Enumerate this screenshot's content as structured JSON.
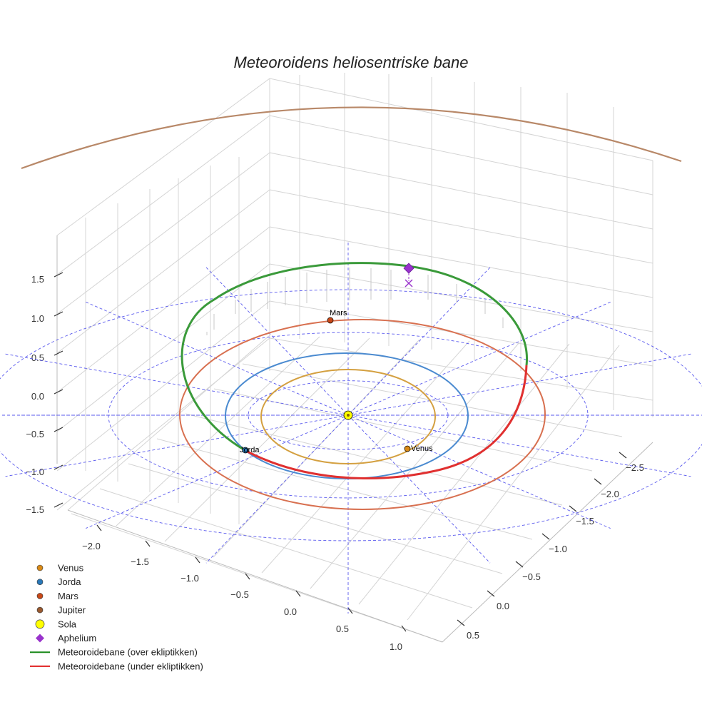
{
  "chart_data": {
    "type": "3d-line",
    "title": "Meteoroidens heliosentriske bane",
    "xlabel": "",
    "ylabel": "",
    "zlabel": "",
    "x_ticks": [
      "−2.0",
      "−1.5",
      "−1.0",
      "−0.5",
      "0.0",
      "0.5",
      "1.0"
    ],
    "y_ticks": [
      "−2.5",
      "−2.0",
      "−1.5",
      "−1.0",
      "−0.5",
      "0.0",
      "0.5"
    ],
    "z_ticks": [
      "1.5",
      "1.0",
      "0.5",
      "0.0",
      "−0.5",
      "−1.0",
      "−1.5"
    ],
    "grid": true,
    "legend_position": "bottom-left",
    "planets": [
      {
        "name": "Venus",
        "label": "Venus",
        "semi_major_axis_au": 0.72,
        "color": "#d4a040",
        "marker_color": "#d98a18"
      },
      {
        "name": "Jorda",
        "label": "Jorda",
        "semi_major_axis_au": 1.0,
        "color": "#4a8ad0",
        "marker_color": "#2a78b8"
      },
      {
        "name": "Mars",
        "label": "Mars",
        "semi_major_axis_au": 1.52,
        "color": "#d87050",
        "marker_color": "#c84818"
      },
      {
        "name": "Jupiter",
        "label": "",
        "semi_major_axis_au": 5.2,
        "color": "#b88868",
        "marker_color": "#9a5a30"
      }
    ],
    "sun": {
      "name": "Sola",
      "color": "#ffff00"
    },
    "aphelion": {
      "name": "Aphelium",
      "color": "#9933cc"
    },
    "meteoroid_orbit": {
      "series": [
        {
          "name": "Meteoroidebane (over ekliptikken)",
          "color": "#3a9a3a"
        },
        {
          "name": "Meteoroidebane (under ekliptikken)",
          "color": "#e03030"
        }
      ]
    },
    "legend": [
      {
        "label": "Venus",
        "kind": "dot",
        "color": "#d98a18"
      },
      {
        "label": "Jorda",
        "kind": "dot",
        "color": "#2a78b8"
      },
      {
        "label": "Mars",
        "kind": "dot",
        "color": "#c84818"
      },
      {
        "label": "Jupiter",
        "kind": "dot",
        "color": "#9a5a30"
      },
      {
        "label": "Sola",
        "kind": "sun",
        "color": "#ffff00"
      },
      {
        "label": "Aphelium",
        "kind": "diamond",
        "color": "#9933cc"
      },
      {
        "label": "Meteoroidebane (over ekliptikken)",
        "kind": "line",
        "color": "#1a8a1a"
      },
      {
        "label": "Meteoroidebane (under ekliptikken)",
        "kind": "line",
        "color": "#e02020"
      }
    ]
  }
}
